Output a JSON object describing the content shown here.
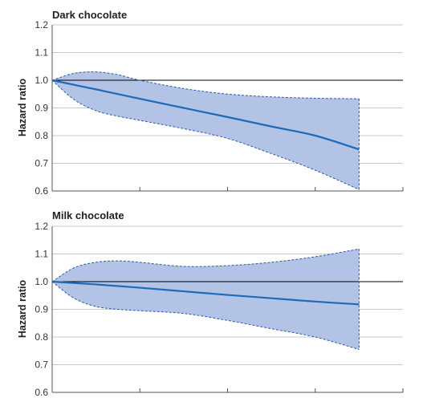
{
  "chart_data": [
    {
      "type": "area",
      "title": "Dark chocolate",
      "xlabel": "",
      "ylabel": "Hazard ratio",
      "ylim": [
        0.6,
        1.2
      ],
      "yticks": [
        "0.6",
        "0.7",
        "0.8",
        "0.9",
        "1.0",
        "1.1",
        "1.2"
      ],
      "xlim": [
        0,
        4
      ],
      "reference_line": 1.0,
      "grid": "horizontal",
      "series": [
        {
          "x": [
            0,
            0.5,
            1,
            1.5,
            2,
            2.5,
            3,
            3.5
          ],
          "values": [
            1.0,
            0.967,
            0.933,
            0.9,
            0.867,
            0.833,
            0.8,
            0.75
          ]
        },
        {
          "x": [
            0,
            0.25,
            0.5,
            0.75,
            1,
            1.5,
            2,
            2.5,
            3,
            3.5
          ],
          "values": [
            1.0,
            1.025,
            1.03,
            1.02,
            1.0,
            0.97,
            0.95,
            0.94,
            0.935,
            0.933
          ]
        },
        {
          "x": [
            0,
            0.25,
            0.5,
            0.75,
            1,
            1.5,
            2,
            2.5,
            3,
            3.5
          ],
          "values": [
            1.0,
            0.93,
            0.89,
            0.87,
            0.855,
            0.825,
            0.79,
            0.735,
            0.675,
            0.605
          ]
        }
      ]
    },
    {
      "type": "area",
      "title": "Milk chocolate",
      "xlabel": "",
      "ylabel": "Hazard ratio",
      "ylim": [
        0.6,
        1.2
      ],
      "yticks": [
        "0.6",
        "0.7",
        "0.8",
        "0.9",
        "1.0",
        "1.1",
        "1.2"
      ],
      "xlim": [
        0,
        4
      ],
      "reference_line": 1.0,
      "grid": "horizontal",
      "series": [
        {
          "x": [
            0,
            0.5,
            1,
            1.5,
            2,
            2.5,
            3,
            3.5
          ],
          "values": [
            1.0,
            0.99,
            0.978,
            0.965,
            0.952,
            0.94,
            0.928,
            0.918
          ]
        },
        {
          "x": [
            0,
            0.25,
            0.5,
            0.75,
            1,
            1.5,
            2,
            2.5,
            3,
            3.5
          ],
          "values": [
            1.0,
            1.05,
            1.07,
            1.075,
            1.07,
            1.055,
            1.058,
            1.07,
            1.09,
            1.118
          ]
        },
        {
          "x": [
            0,
            0.25,
            0.5,
            0.75,
            1,
            1.5,
            2,
            2.5,
            3,
            3.5
          ],
          "values": [
            1.0,
            0.94,
            0.91,
            0.9,
            0.895,
            0.885,
            0.86,
            0.83,
            0.8,
            0.755
          ]
        }
      ]
    }
  ]
}
